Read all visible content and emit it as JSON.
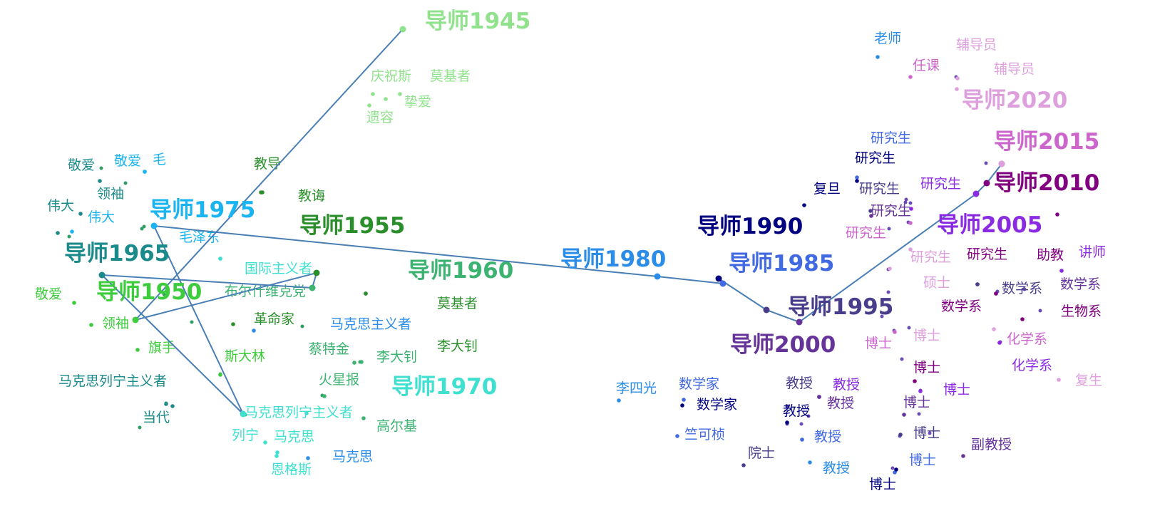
{
  "chart_data": {
    "type": "scatter",
    "title": "",
    "xlabel": "",
    "ylabel": "",
    "grid": false,
    "trajectory_color": "#4a7fb5",
    "years": [
      {
        "label": "导师1945",
        "color": "#90e28c"
      },
      {
        "label": "导师1950",
        "color": "#3ccc3c"
      },
      {
        "label": "导师1955",
        "color": "#2a8f2a"
      },
      {
        "label": "导师1960",
        "color": "#3cb371"
      },
      {
        "label": "导师1965",
        "color": "#1a8a8a"
      },
      {
        "label": "导师1970",
        "color": "#40e0d0"
      },
      {
        "label": "导师1975",
        "color": "#1ab4f0"
      },
      {
        "label": "导师1980",
        "color": "#2b8de8"
      },
      {
        "label": "导师1985",
        "color": "#4169e1"
      },
      {
        "label": "导师1990",
        "color": "#000080"
      },
      {
        "label": "导师1995",
        "color": "#483d8b"
      },
      {
        "label": "导师2000",
        "color": "#663399"
      },
      {
        "label": "导师2005",
        "color": "#8a2be2"
      },
      {
        "label": "导师2010",
        "color": "#800080"
      },
      {
        "label": "导师2015",
        "color": "#cc66cc"
      },
      {
        "label": "导师2020",
        "color": "#dda0dd"
      }
    ],
    "words": [
      {
        "text": "庆祝斯",
        "color": "#90e28c"
      },
      {
        "text": "莫基者",
        "color": "#90e28c"
      },
      {
        "text": "挚爱",
        "color": "#90e28c"
      },
      {
        "text": "遗容",
        "color": "#90e28c"
      },
      {
        "text": "教导",
        "color": "#2a8f2a"
      },
      {
        "text": "教诲",
        "color": "#2a8f2a"
      },
      {
        "text": "敬爱",
        "color": "#1a8a8a"
      },
      {
        "text": "敬爱",
        "color": "#1ab4f0"
      },
      {
        "text": "毛",
        "color": "#1ab4f0"
      },
      {
        "text": "领袖",
        "color": "#1a8a8a"
      },
      {
        "text": "伟大",
        "color": "#1a8a8a"
      },
      {
        "text": "伟大",
        "color": "#1ab4f0"
      },
      {
        "text": "毛泽东",
        "color": "#1ab4f0"
      },
      {
        "text": "国际主义者",
        "color": "#40e0d0"
      },
      {
        "text": "布尔什维克党",
        "color": "#3cb371"
      },
      {
        "text": "敬爱",
        "color": "#3ccc3c"
      },
      {
        "text": "领袖",
        "color": "#3ccc3c"
      },
      {
        "text": "革命家",
        "color": "#2a8f2a"
      },
      {
        "text": "马克思主义者",
        "color": "#2b8de8"
      },
      {
        "text": "旗手",
        "color": "#3ccc3c"
      },
      {
        "text": "斯大林",
        "color": "#3ccc3c"
      },
      {
        "text": "蔡特金",
        "color": "#3cb371"
      },
      {
        "text": "李大钊",
        "color": "#3cb371"
      },
      {
        "text": "莫基者",
        "color": "#2a8f2a"
      },
      {
        "text": "李大钊",
        "color": "#2a8f2a"
      },
      {
        "text": "马克思列宁主义者",
        "color": "#1a8a8a"
      },
      {
        "text": "火星报",
        "color": "#3cb371"
      },
      {
        "text": "当代",
        "color": "#1a8a8a"
      },
      {
        "text": "马克思列宁主义者",
        "color": "#40e0d0"
      },
      {
        "text": "高尔基",
        "color": "#3cb371"
      },
      {
        "text": "列宁",
        "color": "#40e0d0"
      },
      {
        "text": "马克思",
        "color": "#40e0d0"
      },
      {
        "text": "马克思",
        "color": "#2b8de8"
      },
      {
        "text": "恩格斯",
        "color": "#40e0d0"
      },
      {
        "text": "老师",
        "color": "#2b8de8"
      },
      {
        "text": "辅导员",
        "color": "#dda0dd"
      },
      {
        "text": "任课",
        "color": "#cc66cc"
      },
      {
        "text": "辅导员",
        "color": "#dda0dd"
      },
      {
        "text": "研究生",
        "color": "#4169e1"
      },
      {
        "text": "研究生",
        "color": "#000080"
      },
      {
        "text": "复旦",
        "color": "#000080"
      },
      {
        "text": "研究生",
        "color": "#483d8b"
      },
      {
        "text": "研究生",
        "color": "#663399"
      },
      {
        "text": "研究生",
        "color": "#8a2be2"
      },
      {
        "text": "研究生",
        "color": "#cc66cc"
      },
      {
        "text": "研究生",
        "color": "#dda0dd"
      },
      {
        "text": "研究生",
        "color": "#800080"
      },
      {
        "text": "助教",
        "color": "#800080"
      },
      {
        "text": "讲师",
        "color": "#8a2be2"
      },
      {
        "text": "硕士",
        "color": "#dda0dd"
      },
      {
        "text": "数学系",
        "color": "#483d8b"
      },
      {
        "text": "数学系",
        "color": "#663399"
      },
      {
        "text": "数学系",
        "color": "#800080"
      },
      {
        "text": "生物系",
        "color": "#800080"
      },
      {
        "text": "博士",
        "color": "#cc66cc"
      },
      {
        "text": "博士",
        "color": "#dda0dd"
      },
      {
        "text": "化学系",
        "color": "#cc66cc"
      },
      {
        "text": "博士",
        "color": "#800080"
      },
      {
        "text": "化学系",
        "color": "#8a2be2"
      },
      {
        "text": "复生",
        "color": "#dda0dd"
      },
      {
        "text": "博士",
        "color": "#8a2be2"
      },
      {
        "text": "李四光",
        "color": "#2b8de8"
      },
      {
        "text": "数学家",
        "color": "#4169e1"
      },
      {
        "text": "数学家",
        "color": "#000080"
      },
      {
        "text": "教授",
        "color": "#483d8b"
      },
      {
        "text": "教授",
        "color": "#8a2be2"
      },
      {
        "text": "教授",
        "color": "#000080"
      },
      {
        "text": "教授",
        "color": "#663399"
      },
      {
        "text": "博士",
        "color": "#663399"
      },
      {
        "text": "竺可桢",
        "color": "#4169e1"
      },
      {
        "text": "院士",
        "color": "#483d8b"
      },
      {
        "text": "教授",
        "color": "#4169e1"
      },
      {
        "text": "博士",
        "color": "#483d8b"
      },
      {
        "text": "副教授",
        "color": "#663399"
      },
      {
        "text": "博士",
        "color": "#4169e1"
      },
      {
        "text": "教授",
        "color": "#2b8de8"
      },
      {
        "text": "博士",
        "color": "#000080"
      }
    ]
  }
}
